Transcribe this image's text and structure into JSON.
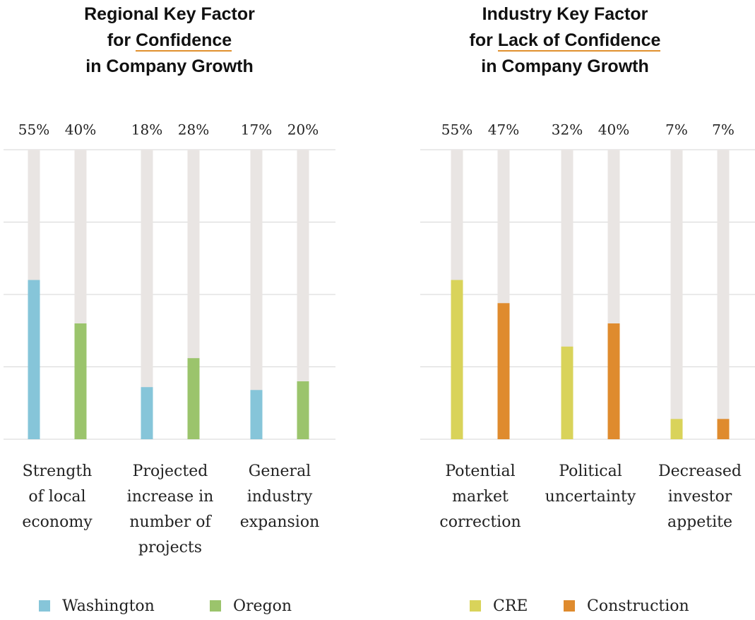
{
  "chart_data": [
    {
      "type": "bar",
      "title": [
        [
          "Regional Key Factor"
        ],
        [
          "for",
          "Confidence"
        ],
        [
          "in Company Growth"
        ]
      ],
      "categories": [
        [
          "Strength",
          "of local",
          "economy"
        ],
        [
          "Projected",
          "increase in",
          "number of",
          "projects"
        ],
        [
          "General",
          "industry",
          "expansion"
        ]
      ],
      "series": [
        {
          "name": "Washington",
          "color": "#86c5d9",
          "values": [
            55,
            18,
            17
          ],
          "value_labels": [
            "55%",
            "18%",
            "17%"
          ]
        },
        {
          "name": "Oregon",
          "color": "#9bc46c",
          "values": [
            40,
            28,
            20
          ],
          "value_labels": [
            "40%",
            "28%",
            "20%"
          ]
        }
      ],
      "ylim": [
        0,
        100
      ],
      "yticks": [
        0,
        25,
        50,
        75,
        100
      ],
      "grid": true
    },
    {
      "type": "bar",
      "title": [
        [
          "Industry Key Factor"
        ],
        [
          "for",
          "Lack of Confidence"
        ],
        [
          "in Company Growth"
        ]
      ],
      "categories": [
        [
          "Potential",
          "market",
          "correction"
        ],
        [
          "Political",
          "uncertainty"
        ],
        [
          "Decreased",
          "investor",
          "appetite"
        ]
      ],
      "series": [
        {
          "name": "CRE",
          "color": "#d9d35a",
          "values": [
            55,
            32,
            7
          ],
          "value_labels": [
            "55%",
            "32%",
            "7%"
          ]
        },
        {
          "name": "Construction",
          "color": "#df8b2e",
          "values": [
            47,
            40,
            7
          ],
          "value_labels": [
            "47%",
            "40%",
            "7%"
          ]
        }
      ],
      "ylim": [
        0,
        100
      ],
      "yticks": [
        0,
        25,
        50,
        75,
        100
      ],
      "grid": true
    }
  ]
}
